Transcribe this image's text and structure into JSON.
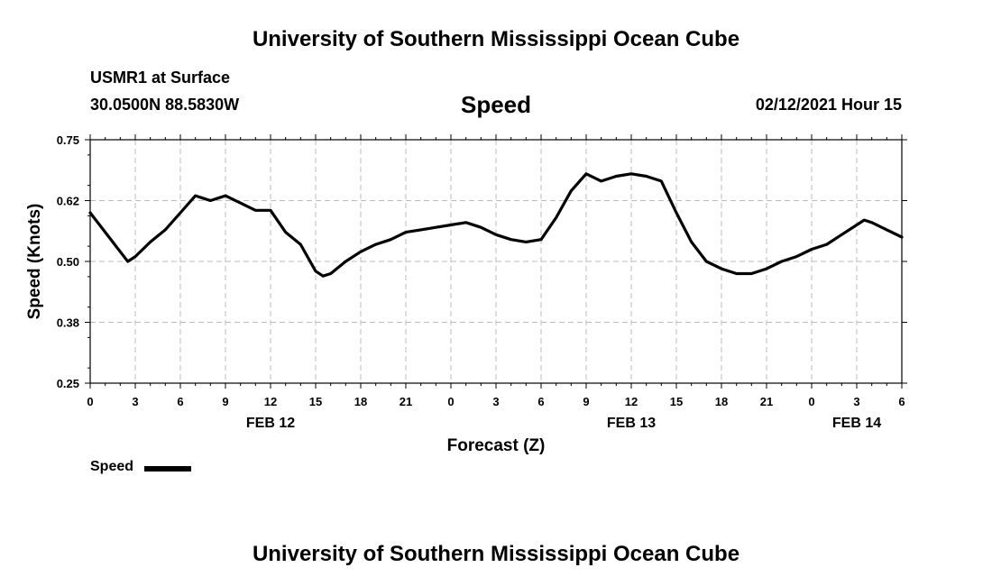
{
  "page": {
    "title_top": "University of Southern Mississippi Ocean Cube",
    "title_bottom": "University of Southern Mississippi Ocean Cube",
    "station": "USMR1 at Surface",
    "coords": "30.0500N 88.5830W",
    "variable": "Speed",
    "timestamp": "02/12/2021 Hour 15"
  },
  "chart_data": {
    "type": "line",
    "title": "Speed",
    "xlabel": "Forecast (Z)",
    "ylabel": "Speed (Knots)",
    "ylim": [
      0.25,
      0.75
    ],
    "xlim": [
      0,
      54
    ],
    "yticks": [
      "0.25",
      "0.38",
      "0.50",
      "0.62",
      "0.75"
    ],
    "xticks": [
      "0",
      "3",
      "6",
      "9",
      "12",
      "15",
      "18",
      "21",
      "0",
      "3",
      "6",
      "9",
      "12",
      "15",
      "18",
      "21",
      "0",
      "3",
      "6"
    ],
    "date_labels": [
      {
        "label": "FEB 12",
        "hour": 12
      },
      {
        "label": "FEB 13",
        "hour": 36
      },
      {
        "label": "FEB 14",
        "hour": 51
      }
    ],
    "grid": true,
    "legend": {
      "label": "Speed",
      "color": "#000000"
    },
    "series": [
      {
        "name": "Speed",
        "color": "#000000",
        "x": [
          0,
          1,
          2,
          2.5,
          3,
          4,
          5,
          6,
          7,
          7.5,
          8,
          8.5,
          9,
          10,
          11,
          12,
          13,
          14,
          15,
          15.5,
          16,
          17,
          18,
          19,
          20,
          21,
          22,
          23,
          24,
          25,
          26,
          27,
          28,
          29,
          30,
          31,
          32,
          33,
          34,
          35,
          36,
          37,
          38,
          39,
          40,
          41,
          42,
          43,
          44,
          45,
          46,
          47,
          48,
          49,
          50,
          51,
          51.5,
          52,
          53,
          54
        ],
        "y": [
          0.6,
          0.56,
          0.52,
          0.5,
          0.51,
          0.54,
          0.565,
          0.6,
          0.635,
          0.63,
          0.625,
          0.63,
          0.635,
          0.62,
          0.605,
          0.605,
          0.56,
          0.535,
          0.48,
          0.47,
          0.475,
          0.5,
          0.52,
          0.535,
          0.545,
          0.56,
          0.565,
          0.57,
          0.575,
          0.58,
          0.57,
          0.555,
          0.545,
          0.54,
          0.545,
          0.59,
          0.645,
          0.68,
          0.665,
          0.675,
          0.68,
          0.675,
          0.665,
          0.6,
          0.54,
          0.5,
          0.485,
          0.475,
          0.475,
          0.485,
          0.5,
          0.51,
          0.525,
          0.535,
          0.555,
          0.575,
          0.585,
          0.58,
          0.565,
          0.55
        ]
      }
    ]
  }
}
